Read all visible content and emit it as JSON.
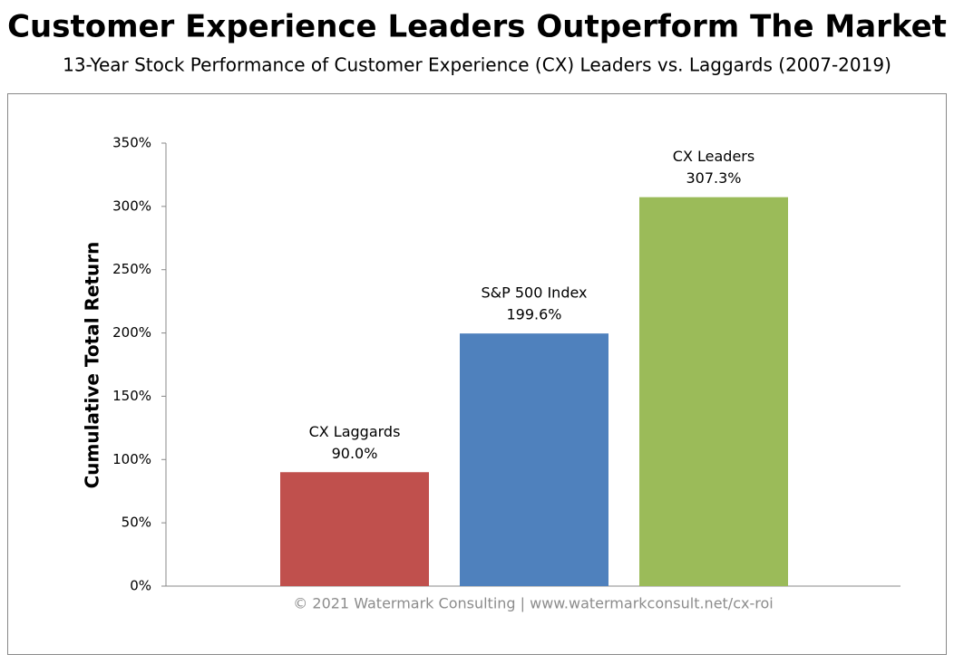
{
  "chart_data": {
    "type": "bar",
    "title": "Customer Experience Leaders Outperform The Market",
    "subtitle": "13-Year Stock Performance of Customer Experience (CX) Leaders vs. Laggards (2007-2019)",
    "y_label": "Cumulative Total Return",
    "footer": "© 2021 Watermark Consulting | www.watermarkconsult.net/cx-roi",
    "categories": [
      "CX Laggards",
      "S&P 500 Index",
      "CX Leaders"
    ],
    "values": [
      90.0,
      199.6,
      307.3
    ],
    "value_labels": [
      "90.0%",
      "199.6%",
      "307.3%"
    ],
    "colors": [
      "#c0504d",
      "#4f81bd",
      "#9bbb59"
    ],
    "ylim": [
      0,
      350
    ],
    "yticks": [
      {
        "value": 0,
        "label": "0%"
      },
      {
        "value": 50,
        "label": "50%"
      },
      {
        "value": 100,
        "label": "100%"
      },
      {
        "value": 150,
        "label": "150%"
      },
      {
        "value": 200,
        "label": "200%"
      },
      {
        "value": 250,
        "label": "250%"
      },
      {
        "value": 300,
        "label": "300%"
      },
      {
        "value": 350,
        "label": "350%"
      }
    ],
    "grid": false
  }
}
